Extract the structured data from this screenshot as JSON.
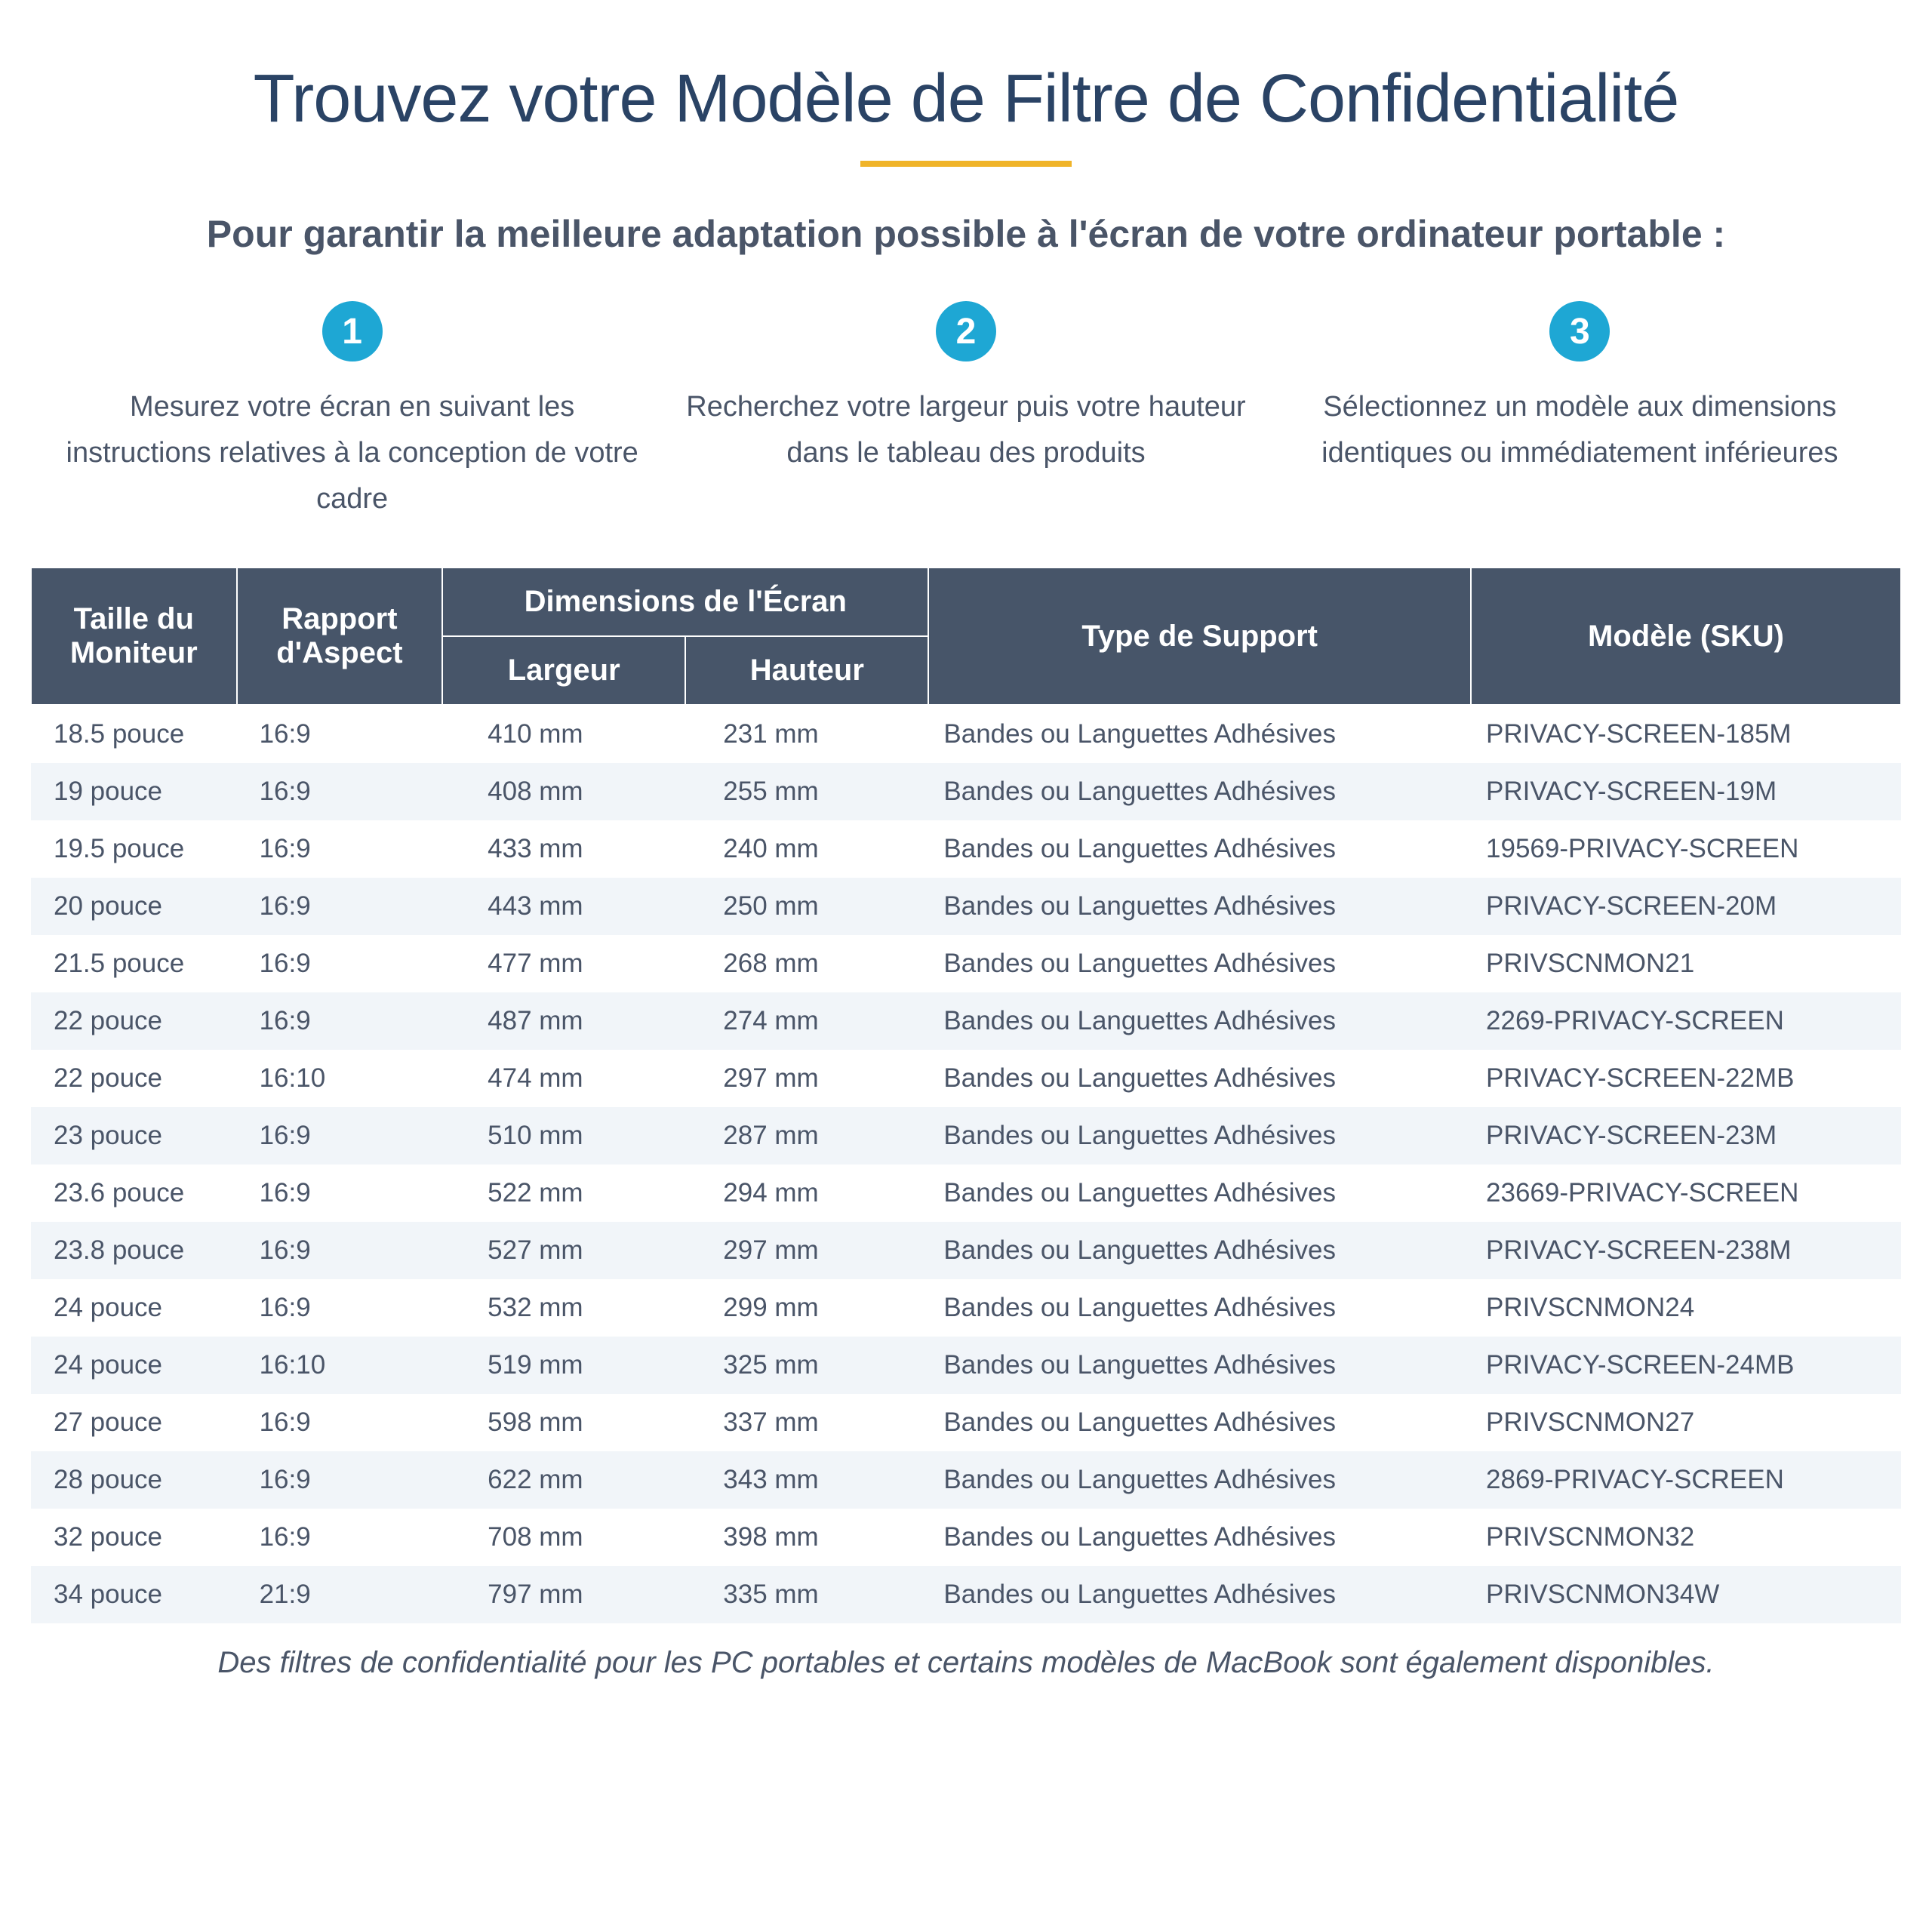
{
  "title": "Trouvez votre Modèle de Filtre de Confidentialité",
  "subtitle": "Pour garantir la meilleure adaptation possible à l'écran de votre ordinateur portable :",
  "steps": [
    {
      "num": "1",
      "text": "Mesurez votre écran en suivant les instructions relatives à la conception de votre cadre"
    },
    {
      "num": "2",
      "text": "Recherchez votre largeur puis votre hauteur dans le tableau des produits"
    },
    {
      "num": "3",
      "text": "Sélectionnez un modèle aux dimensions identiques ou immédiatement inférieures"
    }
  ],
  "table": {
    "headers": {
      "size": "Taille du Moniteur",
      "aspect": "Rapport d'Aspect",
      "dimensions_group": "Dimensions de l'Écran",
      "width": "Largeur",
      "height": "Hauteur",
      "mount": "Type de Support",
      "sku": "Modèle (SKU)"
    },
    "rows": [
      {
        "size": "18.5 pouce",
        "aspect": "16:9",
        "width": "410 mm",
        "height": "231 mm",
        "mount": "Bandes ou Languettes Adhésives",
        "sku": "PRIVACY-SCREEN-185M"
      },
      {
        "size": "19 pouce",
        "aspect": "16:9",
        "width": "408 mm",
        "height": "255 mm",
        "mount": "Bandes ou Languettes Adhésives",
        "sku": "PRIVACY-SCREEN-19M"
      },
      {
        "size": "19.5 pouce",
        "aspect": "16:9",
        "width": "433 mm",
        "height": "240 mm",
        "mount": "Bandes ou Languettes Adhésives",
        "sku": "19569-PRIVACY-SCREEN"
      },
      {
        "size": "20 pouce",
        "aspect": "16:9",
        "width": "443 mm",
        "height": "250 mm",
        "mount": "Bandes ou Languettes Adhésives",
        "sku": "PRIVACY-SCREEN-20M"
      },
      {
        "size": "21.5 pouce",
        "aspect": "16:9",
        "width": "477 mm",
        "height": "268 mm",
        "mount": "Bandes ou Languettes Adhésives",
        "sku": "PRIVSCNMON21"
      },
      {
        "size": "22 pouce",
        "aspect": "16:9",
        "width": "487 mm",
        "height": "274 mm",
        "mount": "Bandes ou Languettes Adhésives",
        "sku": "2269-PRIVACY-SCREEN"
      },
      {
        "size": "22 pouce",
        "aspect": "16:10",
        "width": "474 mm",
        "height": "297 mm",
        "mount": "Bandes ou Languettes Adhésives",
        "sku": "PRIVACY-SCREEN-22MB"
      },
      {
        "size": "23 pouce",
        "aspect": "16:9",
        "width": "510 mm",
        "height": "287 mm",
        "mount": "Bandes ou Languettes Adhésives",
        "sku": "PRIVACY-SCREEN-23M"
      },
      {
        "size": "23.6 pouce",
        "aspect": "16:9",
        "width": "522 mm",
        "height": "294 mm",
        "mount": "Bandes ou Languettes Adhésives",
        "sku": "23669-PRIVACY-SCREEN"
      },
      {
        "size": "23.8 pouce",
        "aspect": "16:9",
        "width": "527 mm",
        "height": "297 mm",
        "mount": "Bandes ou Languettes Adhésives",
        "sku": "PRIVACY-SCREEN-238M"
      },
      {
        "size": "24 pouce",
        "aspect": "16:9",
        "width": "532 mm",
        "height": "299 mm",
        "mount": "Bandes ou Languettes Adhésives",
        "sku": "PRIVSCNMON24"
      },
      {
        "size": "24 pouce",
        "aspect": "16:10",
        "width": "519 mm",
        "height": "325 mm",
        "mount": "Bandes ou Languettes Adhésives",
        "sku": "PRIVACY-SCREEN-24MB"
      },
      {
        "size": "27 pouce",
        "aspect": "16:9",
        "width": "598 mm",
        "height": "337 mm",
        "mount": "Bandes ou Languettes Adhésives",
        "sku": "PRIVSCNMON27"
      },
      {
        "size": "28 pouce",
        "aspect": "16:9",
        "width": "622 mm",
        "height": "343 mm",
        "mount": "Bandes ou Languettes Adhésives",
        "sku": "2869-PRIVACY-SCREEN"
      },
      {
        "size": "32 pouce",
        "aspect": "16:9",
        "width": "708 mm",
        "height": "398 mm",
        "mount": "Bandes ou Languettes Adhésives",
        "sku": "PRIVSCNMON32"
      },
      {
        "size": "34 pouce",
        "aspect": "21:9",
        "width": "797 mm",
        "height": "335 mm",
        "mount": "Bandes ou Languettes Adhésives",
        "sku": "PRIVSCNMON34W"
      }
    ]
  },
  "footer_note": "Des filtres de confidentialité pour les PC portables et certains modèles de MacBook sont également disponibles.",
  "colors": {
    "title_color": "#2a4365",
    "accent_divider": "#f0b429",
    "badge_bg": "#1ea7d4",
    "header_bg": "#475569",
    "text_color": "#4a5568",
    "row_alt_bg": "#f1f5f9"
  }
}
